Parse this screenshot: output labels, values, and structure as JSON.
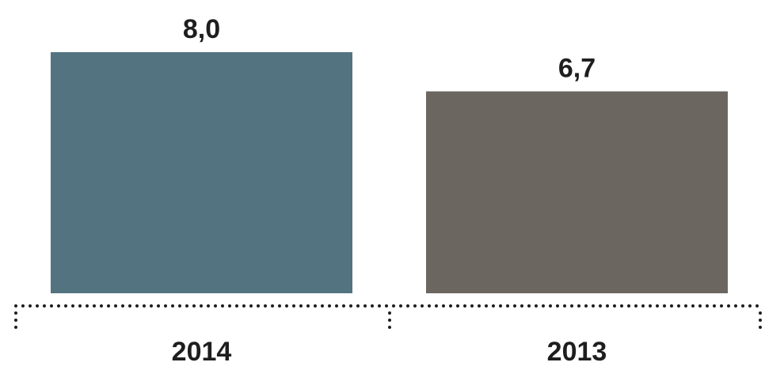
{
  "chart_data": {
    "type": "bar",
    "categories": [
      "2014",
      "2013"
    ],
    "values": [
      8.0,
      6.7
    ],
    "value_labels": [
      "8,0",
      "6,7"
    ],
    "colors": [
      "#547381",
      "#6b665f"
    ],
    "title": "",
    "xlabel": "",
    "ylabel": "",
    "ylim": [
      0,
      8.0
    ],
    "grid": false,
    "legend": "none"
  }
}
